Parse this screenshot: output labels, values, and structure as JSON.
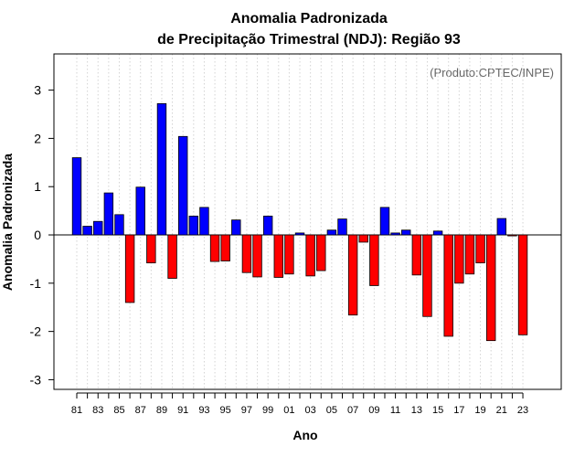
{
  "chart_data": {
    "type": "bar",
    "title_line1": "Anomalia Padronizada",
    "title_line2": "de Precipitação Trimestral (NDJ): Região 93",
    "xlabel": "Ano",
    "ylabel": "Anomalia Padronizada",
    "credit": "(Produto:CPTEC/INPE)",
    "ylim": [
      -3.2,
      3.75
    ],
    "yticks": [
      -3,
      -2,
      -1,
      0,
      1,
      2,
      3
    ],
    "categories": [
      "81",
      "82",
      "83",
      "84",
      "85",
      "86",
      "87",
      "88",
      "89",
      "90",
      "91",
      "92",
      "93",
      "94",
      "95",
      "96",
      "97",
      "98",
      "99",
      "00",
      "01",
      "02",
      "03",
      "04",
      "05",
      "06",
      "07",
      "08",
      "09",
      "10",
      "11",
      "12",
      "13",
      "14",
      "15",
      "16",
      "17",
      "18",
      "19",
      "20",
      "21",
      "22",
      "23"
    ],
    "xtick_labels": [
      "81",
      "83",
      "85",
      "87",
      "89",
      "91",
      "93",
      "95",
      "97",
      "99",
      "01",
      "03",
      "05",
      "07",
      "09",
      "11",
      "13",
      "15",
      "17",
      "19",
      "21",
      "23"
    ],
    "values": [
      1.6,
      0.18,
      0.28,
      0.87,
      0.42,
      -1.4,
      0.99,
      -0.58,
      2.72,
      -0.9,
      2.04,
      0.39,
      0.57,
      -0.55,
      -0.54,
      0.31,
      -0.78,
      -0.87,
      0.39,
      -0.88,
      -0.81,
      0.04,
      -0.85,
      -0.74,
      0.1,
      0.33,
      -1.66,
      -0.15,
      -1.05,
      0.57,
      0.04,
      0.1,
      -0.83,
      -1.69,
      0.08,
      -2.1,
      -1.0,
      -0.81,
      -0.58,
      -2.19,
      0.34,
      -0.02,
      -2.07
    ],
    "colors": {
      "positive": "#0000ff",
      "negative": "#ff0000",
      "grid": "#d3d3d3"
    }
  }
}
